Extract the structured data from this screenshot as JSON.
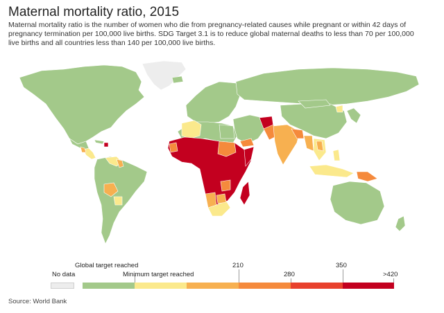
{
  "title": "Maternal mortality ratio, 2015",
  "subtitle": "Maternal mortality ratio is the number of women who die from pregnancy-related causes while pregnant or within 42 days of pregnancy termination per 100,000 live births. SDG Target 3.1 is to reduce global maternal deaths to less than 70 per 100,000 live births and all countries less than 140 per 100,000 live births.",
  "legend": {
    "no_data": "No data",
    "global_target": "Global target reached",
    "minimum_target": "Minimum target reached",
    "tick_210": "210",
    "tick_280": "280",
    "tick_350": "350",
    "tick_420": ">420",
    "colors": [
      "#a3c98a",
      "#fbe98c",
      "#f7b050",
      "#f58a3c",
      "#e8412d",
      "#c3001f"
    ],
    "nodata_color": "#ededed"
  },
  "source": "Source: World Bank",
  "map_colors": {
    "ocean": "#ffffff",
    "low": "#a3c98a",
    "under140": "#fbe98c",
    "to210": "#f7b050",
    "to280": "#f58a3c",
    "to350": "#e8412d",
    "over420": "#c3001f",
    "nodata": "#ededed",
    "border": "#ffffff"
  }
}
